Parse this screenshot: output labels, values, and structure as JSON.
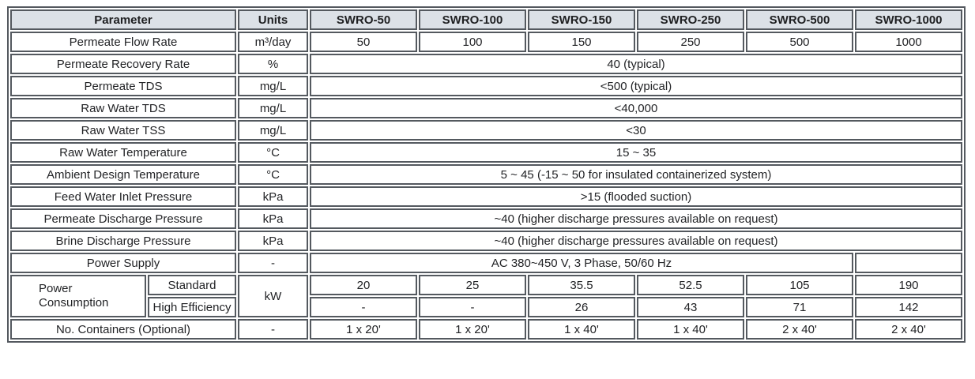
{
  "colors": {
    "header_bg": "#dce1e7",
    "border": "#54595f",
    "text": "#222326"
  },
  "table": {
    "header": {
      "parameter": "Parameter",
      "units": "Units",
      "models": [
        "SWRO-50",
        "SWRO-100",
        "SWRO-150",
        "SWRO-250",
        "SWRO-500",
        "SWRO-1000"
      ]
    },
    "permeate_flow_rate": {
      "label": "Permeate Flow Rate",
      "unit": "m³/day",
      "values": [
        "50",
        "100",
        "150",
        "250",
        "500",
        "1000"
      ]
    },
    "permeate_recovery_rate": {
      "label": "Permeate Recovery Rate",
      "unit": "%",
      "value": "40 (typical)"
    },
    "permeate_tds": {
      "label": "Permeate TDS",
      "unit": "mg/L",
      "value": "<500 (typical)"
    },
    "raw_water_tds": {
      "label": "Raw Water TDS",
      "unit": "mg/L",
      "value": "<40,000"
    },
    "raw_water_tss": {
      "label": "Raw Water TSS",
      "unit": "mg/L",
      "value": "<30"
    },
    "raw_water_temperature": {
      "label": "Raw Water Temperature",
      "unit": "°C",
      "value": "15 ~ 35"
    },
    "ambient_design_temperature": {
      "label": "Ambient Design Temperature",
      "unit": "°C",
      "value": "5 ~ 45 (-15 ~ 50 for insulated containerized system)"
    },
    "feed_water_inlet_pressure": {
      "label": "Feed Water Inlet Pressure",
      "unit": "kPa",
      "value": ">15 (flooded suction)"
    },
    "permeate_discharge_pressure": {
      "label": "Permeate Discharge Pressure",
      "unit": "kPa",
      "value": "~40 (higher discharge pressures available on request)"
    },
    "brine_discharge_pressure": {
      "label": "Brine Discharge Pressure",
      "unit": "kPa",
      "value": "~40 (higher discharge pressures available on request)"
    },
    "power_supply": {
      "label": "Power Supply",
      "unit": "-",
      "value": "AC 380~450 V, 3 Phase, 50/60 Hz",
      "swro_1000_value": ""
    },
    "power_consumption": {
      "label": "Power Consumption",
      "unit": "kW",
      "standard": {
        "label": "Standard",
        "values": [
          "20",
          "25",
          "35.5",
          "52.5",
          "105",
          "190"
        ]
      },
      "high_efficiency": {
        "label": "High Efficiency",
        "values": [
          "-",
          "-",
          "26",
          "43",
          "71",
          "142"
        ]
      }
    },
    "no_containers": {
      "label": "No. Containers (Optional)",
      "unit": "-",
      "values": [
        "1 x 20'",
        "1 x 20'",
        "1 x 40'",
        "1 x 40'",
        "2 x 40'",
        "2 x 40'"
      ]
    }
  }
}
